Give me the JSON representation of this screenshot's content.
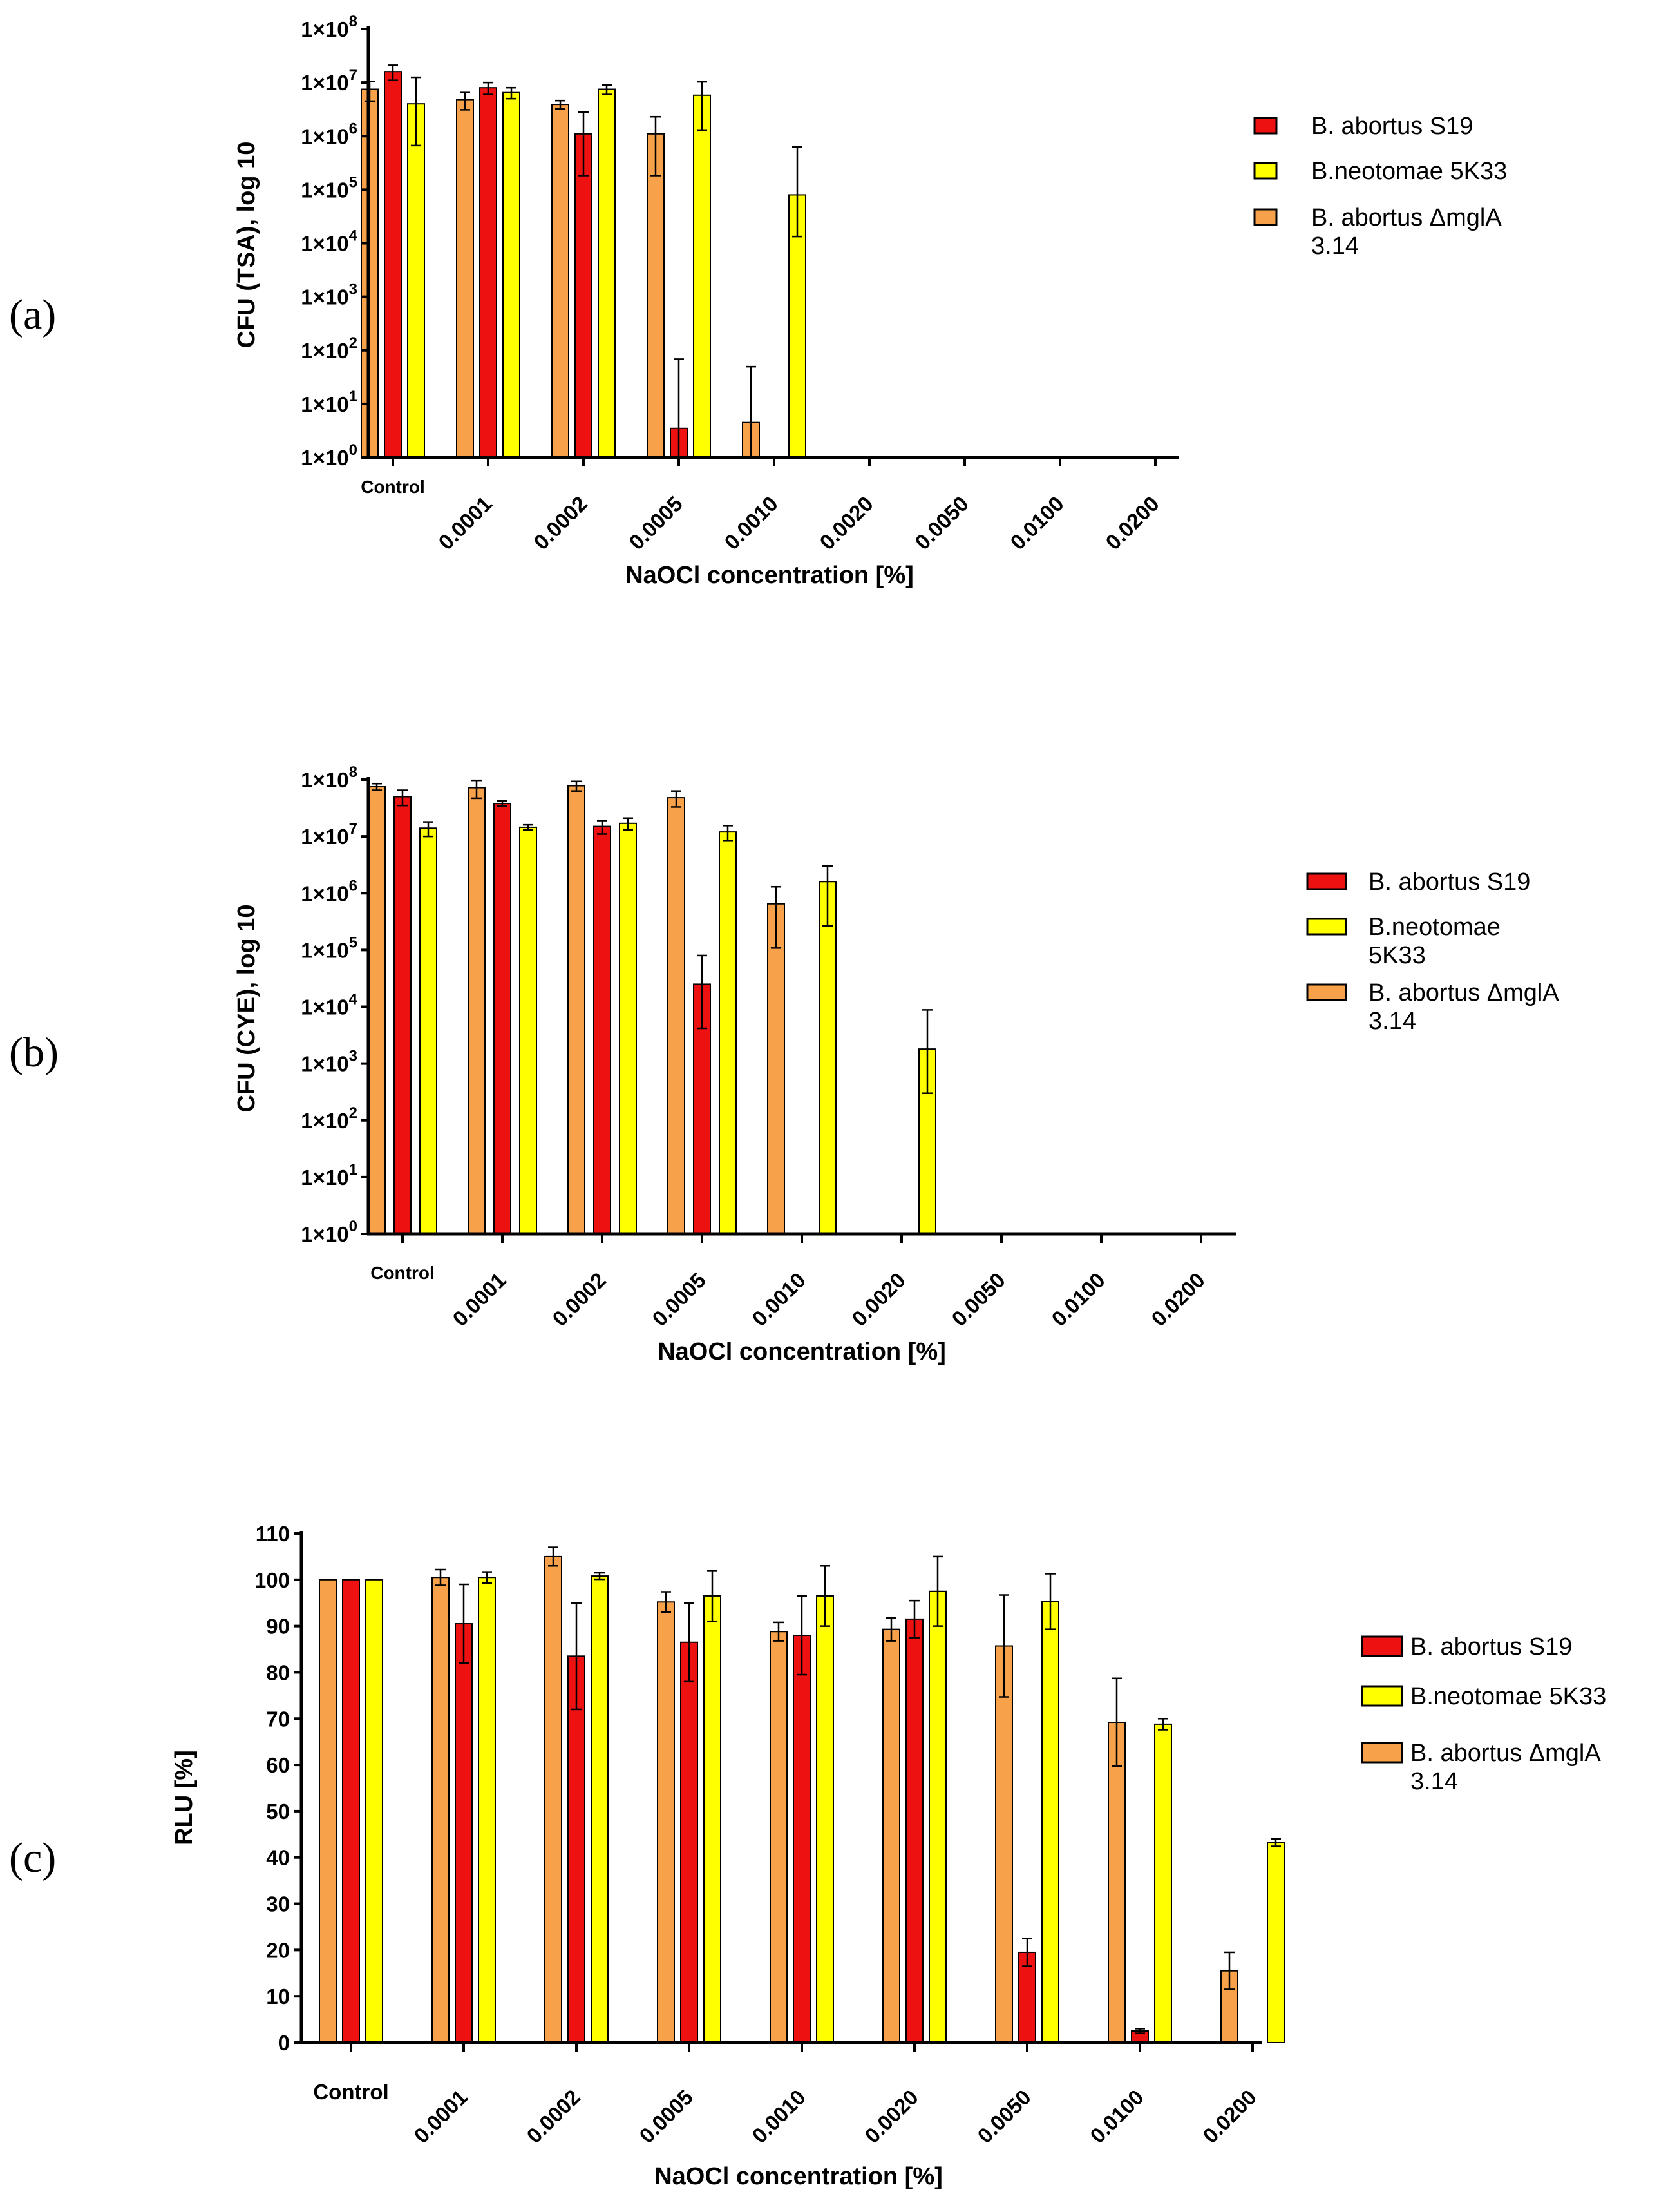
{
  "panel_labels": [
    "(a)",
    "(b)",
    "(c)"
  ],
  "colors": {
    "b_abortus_s19": "#ee1111",
    "b_neotomae": "#ffff00",
    "b_abortus_mgla": "#f7a24a",
    "axis": "#000000"
  },
  "chart_data": [
    {
      "type": "bar",
      "panel": "(a)",
      "scale": "log",
      "title": "",
      "xlabel": "NaOCl concentration [%]",
      "ylabel": "CFU (TSA), log 10",
      "ylim": [
        1,
        100000000
      ],
      "y_ticks": [
        {
          "value": 1,
          "base": "1×10",
          "exp": "0"
        },
        {
          "value": 10,
          "base": "1×10",
          "exp": "1"
        },
        {
          "value": 100,
          "base": "1×10",
          "exp": "2"
        },
        {
          "value": 1000,
          "base": "1×10",
          "exp": "3"
        },
        {
          "value": 10000,
          "base": "1×10",
          "exp": "4"
        },
        {
          "value": 100000,
          "base": "1×10",
          "exp": "5"
        },
        {
          "value": 1000000,
          "base": "1×10",
          "exp": "6"
        },
        {
          "value": 10000000,
          "base": "1×10",
          "exp": "7"
        },
        {
          "value": 100000000,
          "base": "1×10",
          "exp": "8"
        }
      ],
      "categories": [
        "Control",
        "0.0001",
        "0.0002",
        "0.0005",
        "0.0010",
        "0.0020",
        "0.0050",
        "0.0100",
        "0.0200"
      ],
      "bar_order": [
        "B. abortus ΔmglA 3.14",
        "B. abortus S19",
        "B.neotomae 5K33"
      ],
      "series": [
        {
          "name": "B. abortus S19",
          "key": "b_abortus_s19",
          "values": [
            16000000,
            8000000,
            1100000,
            3.5,
            null,
            null,
            null,
            null,
            null
          ],
          "errors": [
            5000000,
            2000000,
            1700000,
            65,
            null,
            null,
            null,
            null,
            null
          ]
        },
        {
          "name": "B.neotomae 5K33",
          "key": "b_neotomae",
          "values": [
            4000000,
            6500000,
            7500000,
            5800000,
            80000,
            null,
            null,
            null,
            null
          ],
          "errors": [
            8500000,
            1500000,
            1500000,
            4500000,
            550000,
            null,
            null,
            null,
            null
          ]
        },
        {
          "name": "B. abortus ΔmglA 3.14",
          "key": "b_abortus_mgla",
          "values": [
            7500000,
            4800000,
            3900000,
            1100000,
            4.5,
            null,
            null,
            null,
            null
          ],
          "errors": [
            3000000,
            1700000,
            700000,
            1200000,
            45,
            null,
            null,
            null,
            null
          ]
        }
      ],
      "legend": [
        {
          "key": "b_abortus_s19",
          "lines": [
            "B. abortus S19"
          ]
        },
        {
          "key": "b_neotomae",
          "lines": [
            "B.neotomae 5K33"
          ]
        },
        {
          "key": "b_abortus_mgla",
          "lines": [
            "B. abortus ΔmglA",
            "3.14"
          ]
        }
      ],
      "legend_position": "right"
    },
    {
      "type": "bar",
      "panel": "(b)",
      "scale": "log",
      "title": "",
      "xlabel": "NaOCl concentration [%]",
      "ylabel": "CFU (CYE), log 10",
      "ylim": [
        1,
        100000000
      ],
      "y_ticks": [
        {
          "value": 1,
          "base": "1×10",
          "exp": "0"
        },
        {
          "value": 10,
          "base": "1×10",
          "exp": "1"
        },
        {
          "value": 100,
          "base": "1×10",
          "exp": "2"
        },
        {
          "value": 1000,
          "base": "1×10",
          "exp": "3"
        },
        {
          "value": 10000,
          "base": "1×10",
          "exp": "4"
        },
        {
          "value": 100000,
          "base": "1×10",
          "exp": "5"
        },
        {
          "value": 1000000,
          "base": "1×10",
          "exp": "6"
        },
        {
          "value": 10000000,
          "base": "1×10",
          "exp": "7"
        },
        {
          "value": 100000000,
          "base": "1×10",
          "exp": "8"
        }
      ],
      "categories": [
        "Control",
        "0.0001",
        "0.0002",
        "0.0005",
        "0.0010",
        "0.0020",
        "0.0050",
        "0.0100",
        "0.0200"
      ],
      "bar_order": [
        "B. abortus ΔmglA 3.14",
        "B. abortus S19",
        "B.neotomae 5K33"
      ],
      "series": [
        {
          "name": "B. abortus S19",
          "key": "b_abortus_s19",
          "values": [
            50000000,
            38000000,
            15000000,
            25000,
            null,
            null,
            null,
            null,
            null
          ],
          "errors": [
            15000000,
            4000000,
            4000000,
            55000,
            null,
            null,
            null,
            null,
            null
          ]
        },
        {
          "name": "B.neotomae 5K33",
          "key": "b_neotomae",
          "values": [
            14000000,
            14500000,
            17000000,
            12000000,
            1600000,
            1800,
            null,
            null,
            null
          ],
          "errors": [
            4000000,
            1500000,
            4000000,
            3500000,
            1400000,
            7000,
            null,
            null,
            null
          ]
        },
        {
          "name": "B. abortus ΔmglA 3.14",
          "key": "b_abortus_mgla",
          "values": [
            75000000,
            72000000,
            78000000,
            48000000,
            650000,
            null,
            null,
            null,
            null
          ],
          "errors": [
            10000000,
            25000000,
            15000000,
            15000000,
            650000,
            null,
            null,
            null,
            null
          ]
        }
      ],
      "legend": [
        {
          "key": "b_abortus_s19",
          "lines": [
            "B. abortus S19"
          ]
        },
        {
          "key": "b_neotomae",
          "lines": [
            "B.neotomae",
            "5K33"
          ]
        },
        {
          "key": "b_abortus_mgla",
          "lines": [
            "B. abortus ΔmglA",
            "3.14"
          ]
        }
      ],
      "legend_position": "right"
    },
    {
      "type": "bar",
      "panel": "(c)",
      "scale": "linear",
      "title": "",
      "xlabel": "NaOCl concentration  [%]",
      "ylabel": "RLU [%]",
      "ylim": [
        0,
        110
      ],
      "y_ticks": [
        {
          "value": 0,
          "label": "0"
        },
        {
          "value": 10,
          "label": "10"
        },
        {
          "value": 20,
          "label": "20"
        },
        {
          "value": 30,
          "label": "30"
        },
        {
          "value": 40,
          "label": "40"
        },
        {
          "value": 50,
          "label": "50"
        },
        {
          "value": 60,
          "label": "60"
        },
        {
          "value": 70,
          "label": "70"
        },
        {
          "value": 80,
          "label": "80"
        },
        {
          "value": 90,
          "label": "90"
        },
        {
          "value": 100,
          "label": "100"
        },
        {
          "value": 110,
          "label": "110"
        }
      ],
      "categories": [
        "Control",
        "0.0001",
        "0.0002",
        "0.0005",
        "0.0010",
        "0.0020",
        "0.0050",
        "0.0100",
        "0.0200"
      ],
      "bar_order": [
        "B. abortus ΔmglA 3.14",
        "B. abortus S19",
        "B.neotomae 5K33"
      ],
      "series": [
        {
          "name": "B. abortus S19",
          "key": "b_abortus_s19",
          "values": [
            100,
            90.5,
            83.5,
            86.5,
            88,
            91.5,
            19.5,
            2.5,
            null
          ],
          "errors": [
            0,
            8.5,
            11.5,
            8.5,
            8.5,
            4,
            3,
            0.5,
            null
          ]
        },
        {
          "name": "B.neotomae 5K33",
          "key": "b_neotomae",
          "values": [
            100,
            100.5,
            100.8,
            96.5,
            96.5,
            97.5,
            95.3,
            68.8,
            43.2
          ],
          "errors": [
            0,
            1.2,
            0.7,
            5.5,
            6.5,
            7.5,
            6,
            1.2,
            0.8
          ]
        },
        {
          "name": "B. abortus ΔmglA 3.14",
          "key": "b_abortus_mgla",
          "values": [
            100,
            100.5,
            105,
            95.2,
            88.8,
            89.3,
            85.7,
            69.2,
            15.5
          ],
          "errors": [
            0,
            1.7,
            2,
            2.2,
            2,
            2.5,
            11,
            9.5,
            4
          ]
        }
      ],
      "legend": [
        {
          "key": "b_abortus_s19",
          "lines": [
            "B. abortus S19"
          ]
        },
        {
          "key": "b_neotomae",
          "lines": [
            "B.neotomae 5K33"
          ]
        },
        {
          "key": "b_abortus_mgla",
          "lines": [
            "B. abortus ΔmglA",
            "3.14"
          ]
        }
      ],
      "legend_position": "right"
    }
  ]
}
